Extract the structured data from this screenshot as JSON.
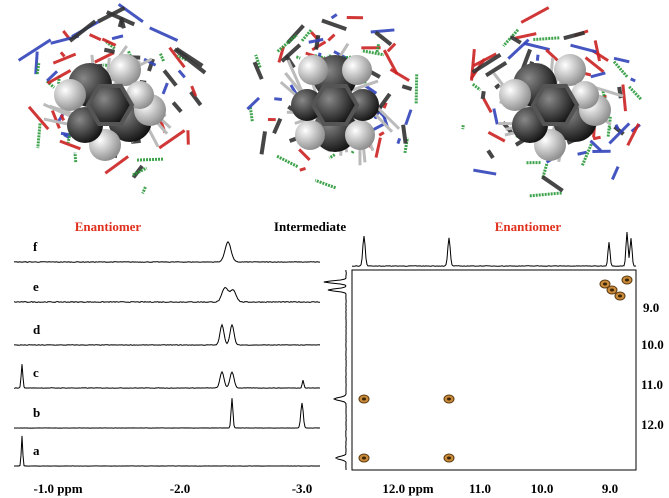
{
  "labels": {
    "left": "Enantiomer",
    "middle": "Intermediate",
    "right": "Enantiomer"
  },
  "traces": [
    "f",
    "e",
    "d",
    "c",
    "b",
    "a"
  ],
  "x_axis_1d": [
    "-1.0 ppm",
    "-2.0",
    "-3.0"
  ],
  "x_axis_2d": [
    "12.0 ppm",
    "11.0",
    "10.0",
    "9.0"
  ],
  "y_axis_2d": [
    "9.0",
    "10.0",
    "11.0",
    "12.0"
  ]
}
